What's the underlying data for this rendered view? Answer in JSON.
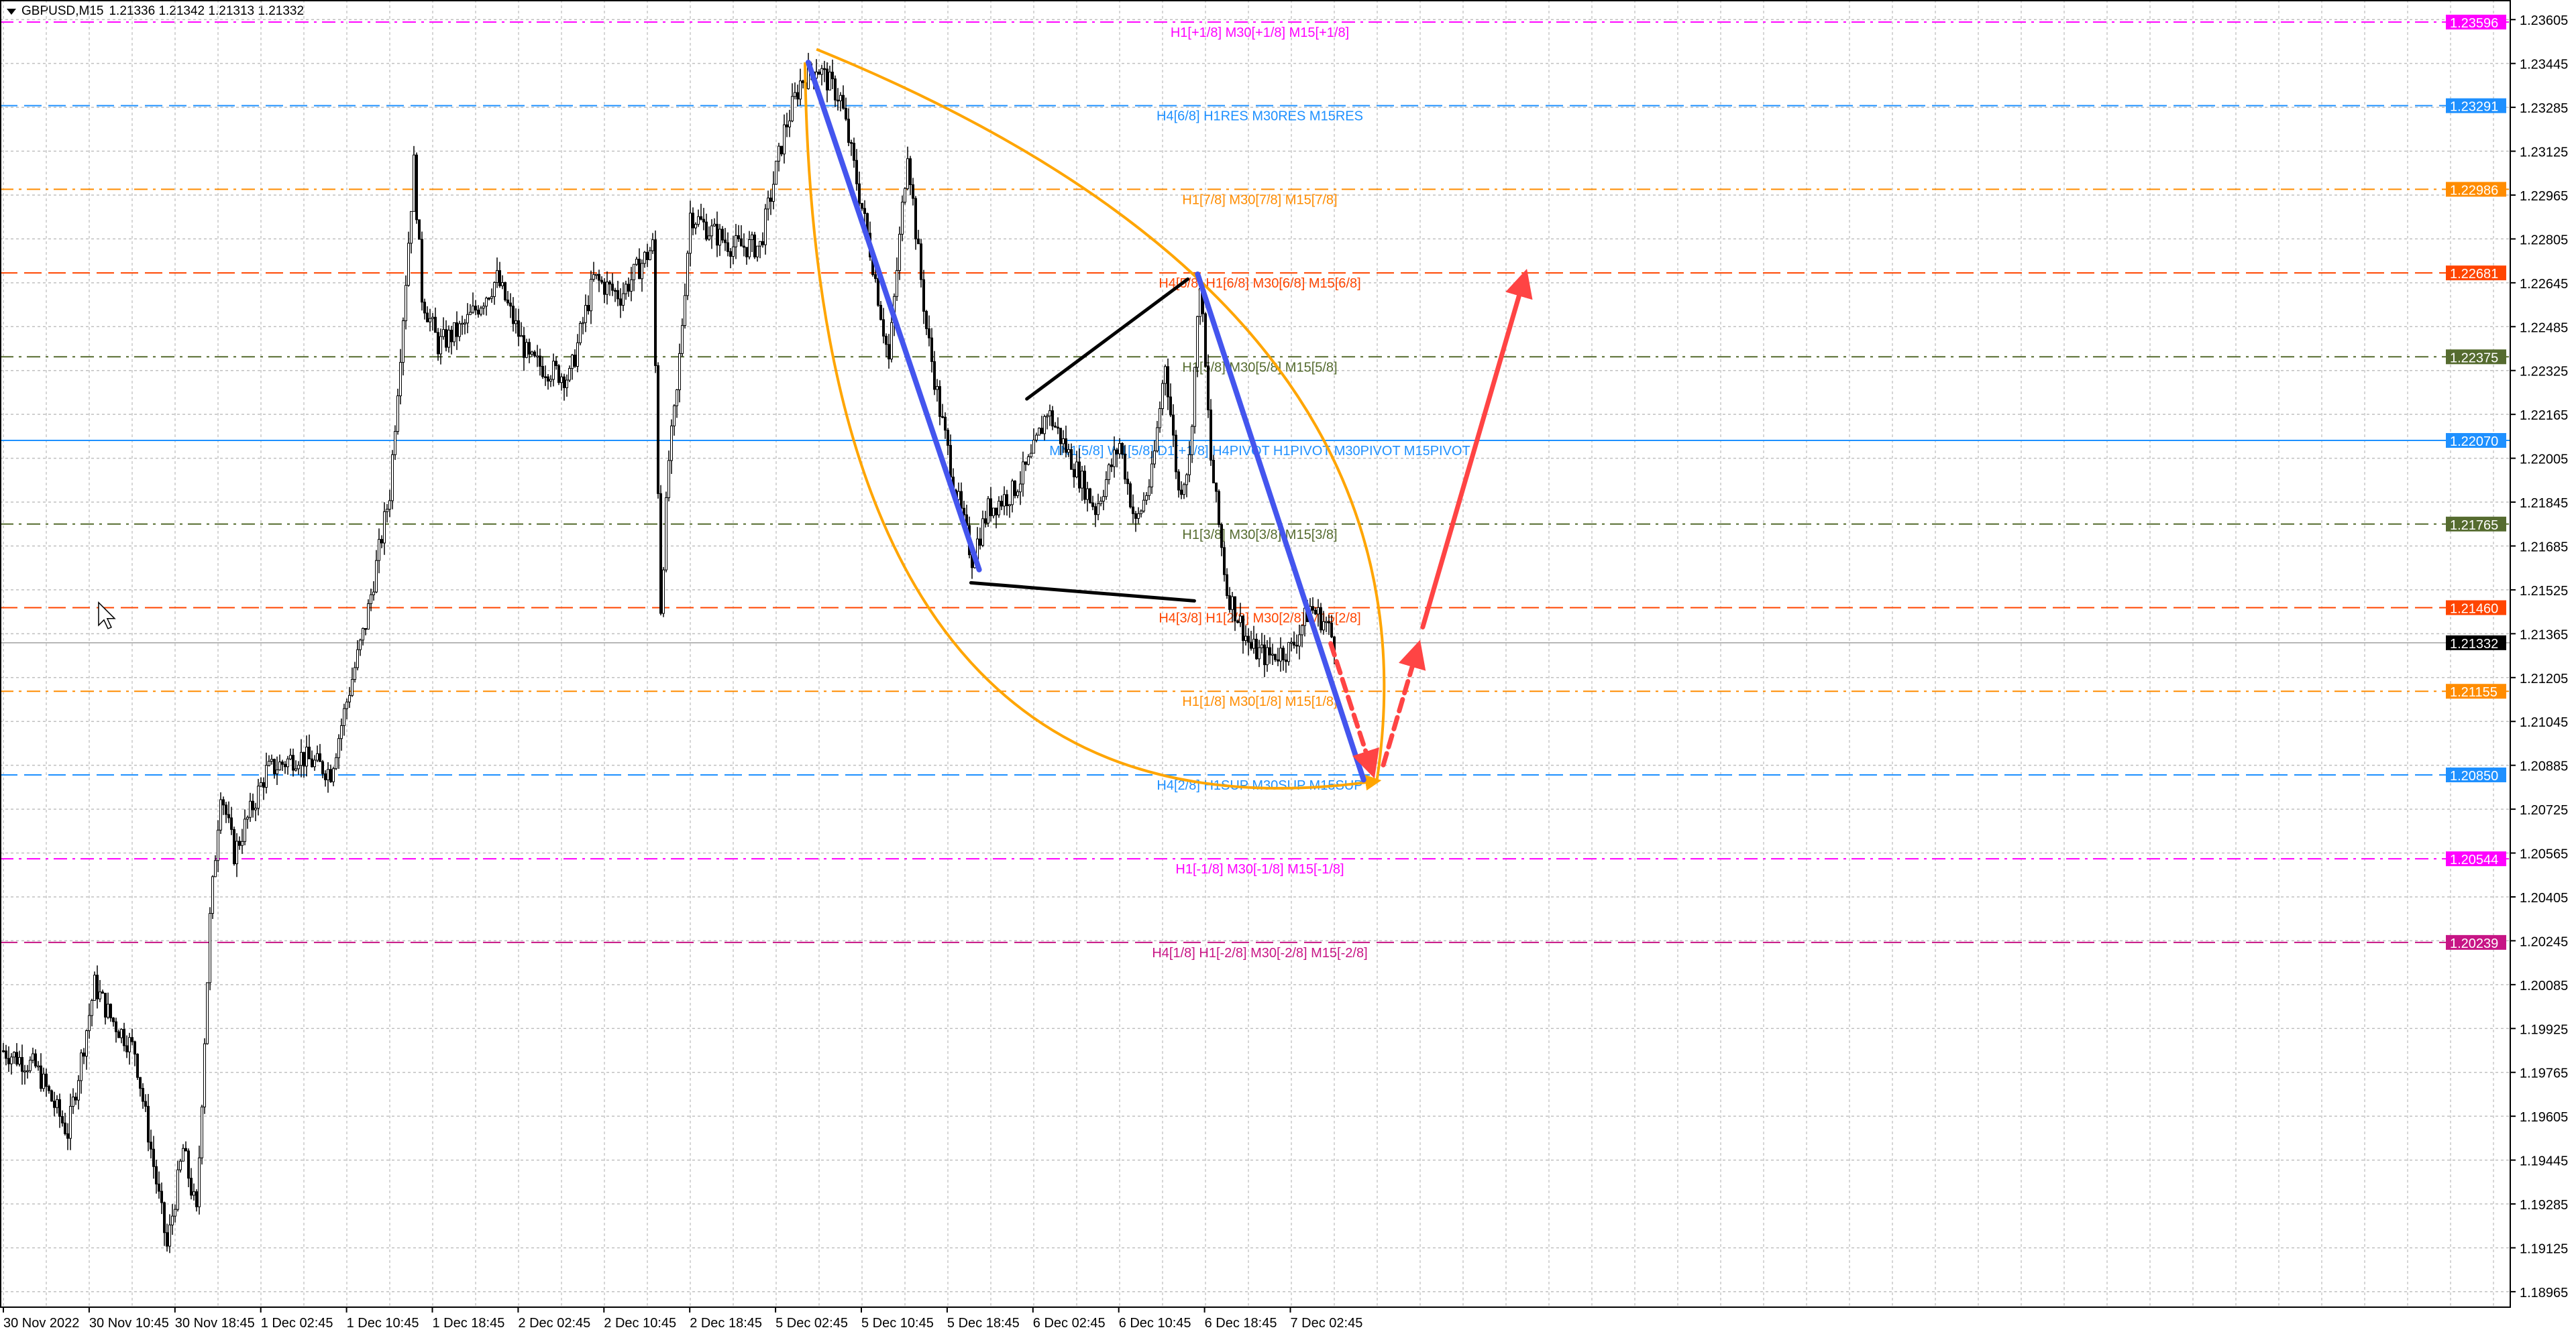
{
  "header": {
    "symbol": "GBPUSD,M15",
    "ohlc": "1.21336 1.21342 1.21313 1.21332",
    "menu_icon": "triangle-down-icon"
  },
  "chart_data": {
    "type": "candlestick",
    "price_axis_labels": [
      "1.23605",
      "1.23445",
      "1.23285",
      "1.23125",
      "1.22965",
      "1.22805",
      "1.22645",
      "1.22485",
      "1.22325",
      "1.22165",
      "1.22005",
      "1.21845",
      "1.21685",
      "1.21525",
      "1.21365",
      "1.21205",
      "1.21045",
      "1.20885",
      "1.20725",
      "1.20565",
      "1.20405",
      "1.20245",
      "1.20085",
      "1.19925",
      "1.19765",
      "1.19605",
      "1.19445",
      "1.19285",
      "1.19125",
      "1.18965"
    ],
    "time_axis_labels": [
      "30 Nov 2022",
      "30 Nov 10:45",
      "30 Nov 18:45",
      "1 Dec 02:45",
      "1 Dec 10:45",
      "1 Dec 18:45",
      "2 Dec 02:45",
      "2 Dec 10:45",
      "2 Dec 18:45",
      "5 Dec 02:45",
      "5 Dec 10:45",
      "5 Dec 18:45",
      "6 Dec 02:45",
      "6 Dec 10:45",
      "6 Dec 18:45",
      "7 Dec 02:45"
    ],
    "ylim": [
      1.18965,
      1.23605
    ],
    "grid": true,
    "price_path": [
      [
        0,
        1.19844
      ],
      [
        12,
        1.19784
      ],
      [
        24,
        1.19545
      ],
      [
        34,
        1.20084
      ],
      [
        40,
        1.19964
      ],
      [
        49,
        1.19844
      ],
      [
        61,
        1.19126
      ],
      [
        67,
        1.19485
      ],
      [
        72,
        1.19245
      ],
      [
        77,
        1.20323
      ],
      [
        81,
        1.20802
      ],
      [
        86,
        1.20563
      ],
      [
        98,
        1.20862
      ],
      [
        110,
        1.20922
      ],
      [
        122,
        1.20862
      ],
      [
        129,
        1.21162
      ],
      [
        135,
        1.21401
      ],
      [
        144,
        1.2188
      ],
      [
        150,
        1.22659
      ],
      [
        153,
        1.23078
      ],
      [
        156,
        1.22599
      ],
      [
        162,
        1.22419
      ],
      [
        171,
        1.22479
      ],
      [
        184,
        1.22659
      ],
      [
        196,
        1.22359
      ],
      [
        211,
        1.22299
      ],
      [
        220,
        1.22659
      ],
      [
        230,
        1.22599
      ],
      [
        242,
        1.22778
      ],
      [
        245,
        1.21461
      ],
      [
        248,
        1.21999
      ],
      [
        251,
        1.22239
      ],
      [
        256,
        1.22898
      ],
      [
        263,
        1.22838
      ],
      [
        272,
        1.22778
      ],
      [
        282,
        1.22778
      ],
      [
        291,
        1.23197
      ],
      [
        297,
        1.23377
      ],
      [
        303,
        1.23437
      ],
      [
        312,
        1.23317
      ],
      [
        318,
        1.23018
      ],
      [
        324,
        1.22718
      ],
      [
        330,
        1.22359
      ],
      [
        337,
        1.23138
      ],
      [
        340,
        1.22838
      ],
      [
        344,
        1.22479
      ],
      [
        349,
        1.2218
      ],
      [
        355,
        1.2188
      ],
      [
        361,
        1.21641
      ],
      [
        367,
        1.2182
      ],
      [
        376,
        1.2188
      ],
      [
        383,
        1.21999
      ],
      [
        389,
        1.2218
      ],
      [
        398,
        1.21999
      ],
      [
        407,
        1.2182
      ],
      [
        416,
        1.2206
      ],
      [
        422,
        1.2176
      ],
      [
        428,
        1.2194
      ],
      [
        433,
        1.22359
      ],
      [
        438,
        1.2188
      ],
      [
        442,
        1.21999
      ],
      [
        446,
        1.22659
      ],
      [
        450,
        1.21999
      ],
      [
        456,
        1.21521
      ],
      [
        465,
        1.21311
      ],
      [
        471,
        1.21281
      ],
      [
        480,
        1.21311
      ],
      [
        487,
        1.21461
      ],
      [
        493,
        1.21401
      ],
      [
        496,
        1.21332
      ]
    ],
    "current_price": {
      "value": "1.21332",
      "color": "#000000"
    },
    "levels": [
      {
        "price": 1.23596,
        "axis_label": "1.23596",
        "label": "H1[+1/8] M30[+1/8] M15[+1/8]",
        "color": "#ff00ff",
        "style": "dashdot"
      },
      {
        "price": 1.23291,
        "axis_label": "1.23291",
        "label": "H4[6/8] H1RES M30RES M15RES",
        "color": "#1e90ff",
        "style": "dash"
      },
      {
        "price": 1.22986,
        "axis_label": "1.22986",
        "label": "H1[7/8] M30[7/8] M15[7/8]",
        "color": "#ff8c00",
        "style": "dashdot"
      },
      {
        "price": 1.22681,
        "axis_label": "1.22681",
        "label": "H4[5/8] H1[6/8] M30[6/8] M15[6/8]",
        "color": "#ff4500",
        "style": "dash"
      },
      {
        "price": 1.22375,
        "axis_label": "1.22375",
        "label": "H1[5/8] M30[5/8] M15[5/8]",
        "color": "#556b2f",
        "style": "dashdot"
      },
      {
        "price": 1.2207,
        "axis_label": "1.22070",
        "label": "MN1[5/8] W1[5/8] D1[+1/8] H4PIVOT H1PIVOT M30PIVOT M15PIVOT",
        "color": "#1e90ff",
        "style": "solid"
      },
      {
        "price": 1.21765,
        "axis_label": "1.21765",
        "label": "H1[3/8] M30[3/8] M15[3/8]",
        "color": "#556b2f",
        "style": "dashdot"
      },
      {
        "price": 1.2146,
        "axis_label": "1.21460",
        "label": "H4[3/8] H1[2/8] M30[2/8] M15[2/8]",
        "color": "#ff4500",
        "style": "dash"
      },
      {
        "price": 1.21155,
        "axis_label": "1.21155",
        "label": "H1[1/8] M30[1/8] M15[1/8]",
        "color": "#ff8c00",
        "style": "dashdot"
      },
      {
        "price": 1.2085,
        "axis_label": "1.20850",
        "label": "H4[2/8] H1SUP M30SUP M15SUP",
        "color": "#1e90ff",
        "style": "dash"
      },
      {
        "price": 1.20544,
        "axis_label": "1.20544",
        "label": "H1[-1/8] M30[-1/8] M15[-1/8]",
        "color": "#ff00ff",
        "style": "dashdot"
      },
      {
        "price": 1.20239,
        "axis_label": "1.20239",
        "label": "H4[1/8] H1[-2/8] M30[-2/8] M15[-2/8]",
        "color": "#c71585",
        "style": "dash"
      }
    ],
    "drawings": {
      "arc_color": "#ffa500",
      "trend_color": "#4455ee",
      "wedge_color": "#000000",
      "projection_color": "#ff4444"
    }
  }
}
